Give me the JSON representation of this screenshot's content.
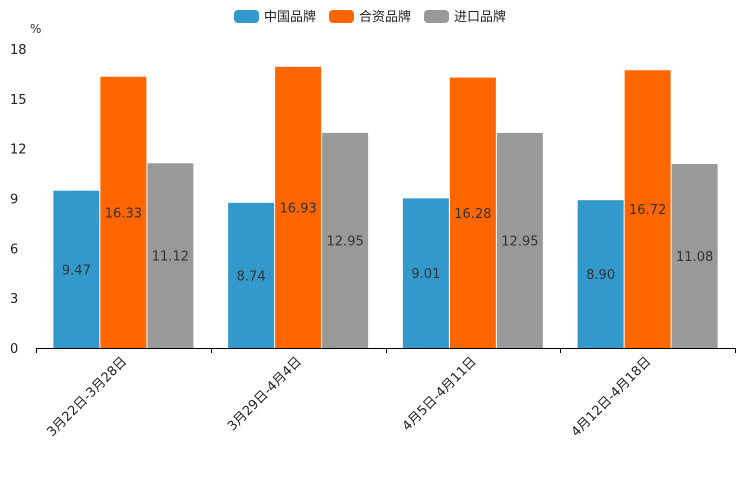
{
  "chart_data": {
    "type": "bar",
    "title": "",
    "xlabel": "",
    "ylabel": "%",
    "ylim": [
      0,
      18
    ],
    "yticks": [
      0,
      3,
      6,
      9,
      12,
      15,
      18
    ],
    "grid": false,
    "legend_position": "top-center",
    "categories": [
      "3月22日-3月28日",
      "3月29日-4月4日",
      "4月5日-4月11日",
      "4月12日-4月18日"
    ],
    "series": [
      {
        "name": "中国品牌",
        "color": "#3399cc",
        "values": [
          9.47,
          8.74,
          9.01,
          8.9
        ],
        "labels": [
          "9.47",
          "8.74",
          "9.01",
          "8.90"
        ]
      },
      {
        "name": "合资品牌",
        "color": "#ff6600",
        "values": [
          16.33,
          16.93,
          16.28,
          16.72
        ],
        "labels": [
          "16.33",
          "16.93",
          "16.28",
          "16.72"
        ]
      },
      {
        "name": "进口品牌",
        "color": "#999999",
        "values": [
          11.12,
          12.95,
          12.95,
          11.08
        ],
        "labels": [
          "11.12",
          "12.95",
          "12.95",
          "11.08"
        ]
      }
    ]
  }
}
